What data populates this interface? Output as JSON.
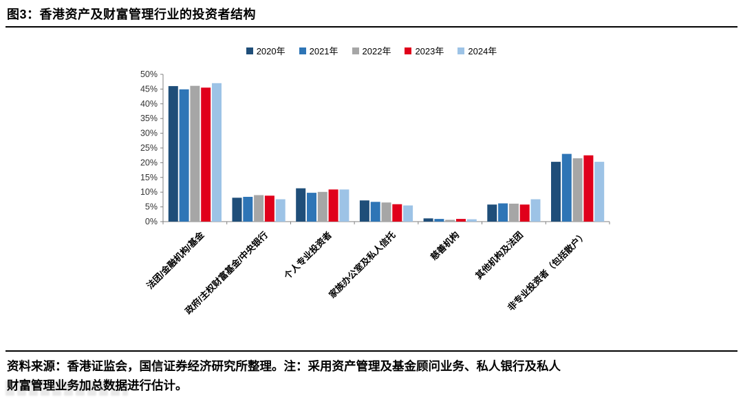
{
  "header": {
    "title": "图3：香港资产及财富管理行业的投资者结构"
  },
  "footer": {
    "line1": "资料来源：香港证监会，国信证券经济研究所整理。注：采用资产管理及基金顾问业务、私人银行及私人",
    "line2": "财富管理业务加总数据进行估计。"
  },
  "chart_data": {
    "type": "bar",
    "title": "图3：香港资产及财富管理行业的投资者结构",
    "categories": [
      "法团/金融机构/基金",
      "政府/主权财富基金/中央银行",
      "个人专业投资者",
      "家族办公室及私人信托",
      "慈善机构",
      "其他机构及法团",
      "非专业投资者（包括散户）"
    ],
    "series": [
      {
        "name": "2020年",
        "color": "#1F4E79",
        "values": [
          46.0,
          8.1,
          11.3,
          7.2,
          1.1,
          5.8,
          20.3
        ]
      },
      {
        "name": "2021年",
        "color": "#2E75B6",
        "values": [
          44.9,
          8.4,
          9.8,
          6.7,
          0.9,
          6.2,
          23.0
        ]
      },
      {
        "name": "2022年",
        "color": "#A6A6A6",
        "values": [
          46.1,
          9.0,
          10.1,
          6.5,
          0.6,
          6.1,
          21.5
        ]
      },
      {
        "name": "2023年",
        "color": "#E0001B",
        "values": [
          45.5,
          8.8,
          10.9,
          5.9,
          0.9,
          5.8,
          22.5
        ]
      },
      {
        "name": "2024年",
        "color": "#9DC3E6",
        "values": [
          47.0,
          7.6,
          10.9,
          5.5,
          0.8,
          7.6,
          20.3
        ]
      }
    ],
    "xlabel": "",
    "ylabel": "",
    "ylim": [
      0,
      50
    ],
    "ytick_step": 5,
    "ytick_format": "percent",
    "grid": false,
    "legend_position": "top-center"
  }
}
